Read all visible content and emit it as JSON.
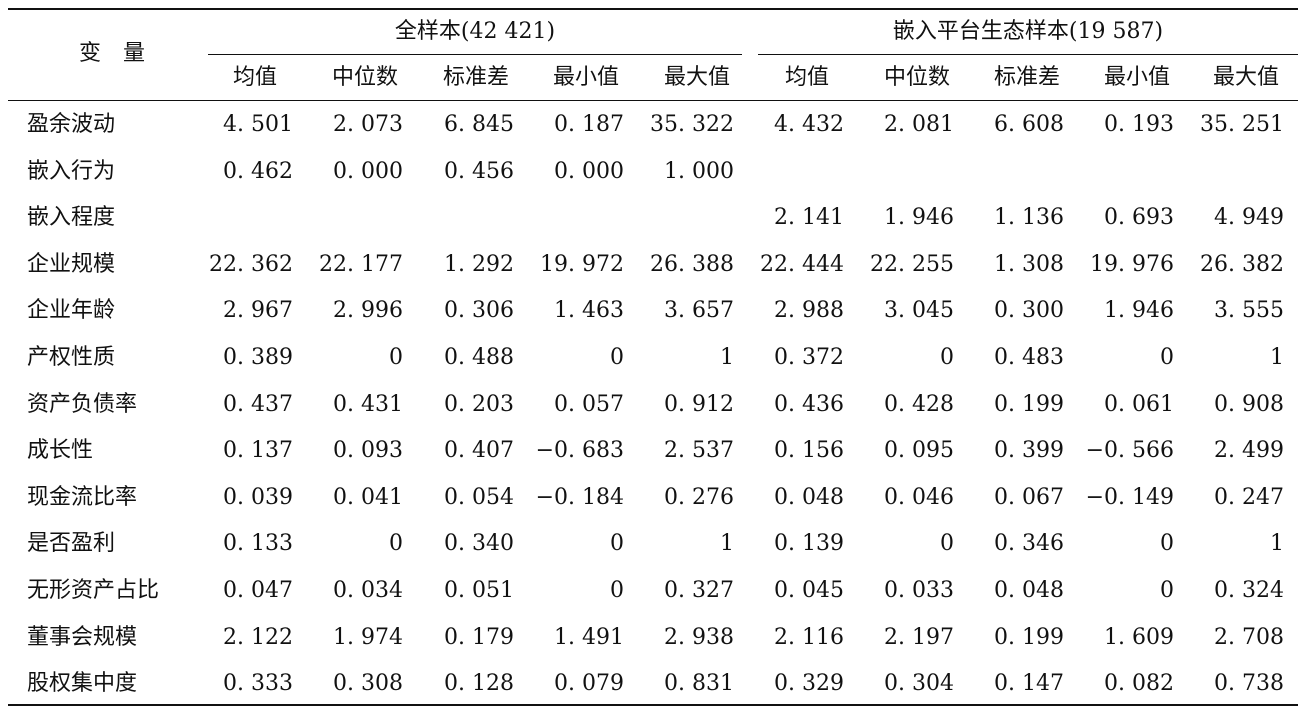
{
  "table": {
    "var_header": "变　量",
    "groups": [
      "全样本(42 421)",
      "嵌入平台生态样本(19 587)"
    ],
    "subheaders": [
      "均值",
      "中位数",
      "标准差",
      "最小值",
      "最大值",
      "均值",
      "中位数",
      "标准差",
      "最小值",
      "最大值"
    ],
    "rows": [
      {
        "name": "盈余波动",
        "values": [
          "4. 501",
          "2. 073",
          "6. 845",
          "0. 187",
          "35. 322",
          "4. 432",
          "2. 081",
          "6. 608",
          "0. 193",
          "35. 251"
        ]
      },
      {
        "name": "嵌入行为",
        "values": [
          "0. 462",
          "0. 000",
          "0. 456",
          "0. 000",
          "1. 000",
          "",
          "",
          "",
          "",
          ""
        ]
      },
      {
        "name": "嵌入程度",
        "values": [
          "",
          "",
          "",
          "",
          "",
          "2. 141",
          "1. 946",
          "1. 136",
          "0. 693",
          "4. 949"
        ]
      },
      {
        "name": "企业规模",
        "values": [
          "22. 362",
          "22. 177",
          "1. 292",
          "19. 972",
          "26. 388",
          "22. 444",
          "22. 255",
          "1. 308",
          "19. 976",
          "26. 382"
        ]
      },
      {
        "name": "企业年龄",
        "values": [
          "2. 967",
          "2. 996",
          "0. 306",
          "1. 463",
          "3. 657",
          "2. 988",
          "3. 045",
          "0. 300",
          "1. 946",
          "3. 555"
        ]
      },
      {
        "name": "产权性质",
        "values": [
          "0. 389",
          "0",
          "0. 488",
          "0",
          "1",
          "0. 372",
          "0",
          "0. 483",
          "0",
          "1"
        ]
      },
      {
        "name": "资产负债率",
        "values": [
          "0. 437",
          "0. 431",
          "0. 203",
          "0. 057",
          "0. 912",
          "0. 436",
          "0. 428",
          "0. 199",
          "0. 061",
          "0. 908"
        ]
      },
      {
        "name": "成长性",
        "values": [
          "0. 137",
          "0. 093",
          "0. 407",
          "−0. 683",
          "2. 537",
          "0. 156",
          "0. 095",
          "0. 399",
          "−0. 566",
          "2. 499"
        ]
      },
      {
        "name": "现金流比率",
        "values": [
          "0. 039",
          "0. 041",
          "0. 054",
          "−0. 184",
          "0. 276",
          "0. 048",
          "0. 046",
          "0. 067",
          "−0. 149",
          "0. 247"
        ]
      },
      {
        "name": "是否盈利",
        "values": [
          "0. 133",
          "0",
          "0. 340",
          "0",
          "1",
          "0. 139",
          "0",
          "0. 346",
          "0",
          "1"
        ]
      },
      {
        "name": "无形资产占比",
        "values": [
          "0. 047",
          "0. 034",
          "0. 051",
          "0",
          "0. 327",
          "0. 045",
          "0. 033",
          "0. 048",
          "0",
          "0. 324"
        ]
      },
      {
        "name": "董事会规模",
        "values": [
          "2. 122",
          "1. 974",
          "0. 179",
          "1. 491",
          "2. 938",
          "2. 116",
          "2. 197",
          "0. 199",
          "1. 609",
          "2. 708"
        ]
      },
      {
        "name": "股权集中度",
        "values": [
          "0. 333",
          "0. 308",
          "0. 128",
          "0. 079",
          "0. 831",
          "0. 329",
          "0. 304",
          "0. 147",
          "0. 082",
          "0. 738"
        ]
      }
    ]
  }
}
